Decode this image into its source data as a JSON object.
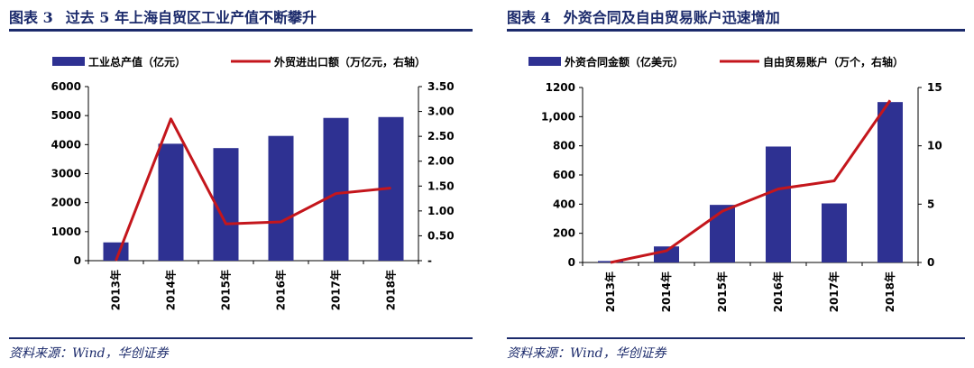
{
  "colors": {
    "bar": "#2e3192",
    "line": "#c4161c",
    "title": "#1b2a6b"
  },
  "charts": [
    {
      "figure_label": "图表 3",
      "title_text": "过去 5 年上海自贸区工业产值不断攀升",
      "source": "资料来源：Wind，华创证券",
      "legend_bar": "工业总产值（亿元）",
      "legend_line": "外贸进出口额（万亿元，右轴）",
      "left_ticks": [
        "6000",
        "5000",
        "4000",
        "3000",
        "2000",
        "1000",
        "0"
      ],
      "right_ticks": [
        "3.50",
        "3.00",
        "2.50",
        "2.00",
        "1.50",
        "1.00",
        "0.50",
        "-"
      ],
      "x_ticks": [
        "2013年",
        "2014年",
        "2015年",
        "2016年",
        "2017年",
        "2018年"
      ]
    },
    {
      "figure_label": "图表 4",
      "title_text": "外资合同及自由贸易账户迅速增加",
      "source": "资料来源：Wind，华创证券",
      "legend_bar": "外资合同金额（亿美元）",
      "legend_line": "自由贸易账户（万个，右轴）",
      "left_ticks": [
        "1200",
        "1,000",
        "800",
        "600",
        "400",
        "200",
        "0"
      ],
      "right_ticks": [
        "15",
        "10",
        "5",
        "0"
      ],
      "x_ticks": [
        "2013年",
        "2014年",
        "2015年",
        "2016年",
        "2017年",
        "2018年"
      ]
    }
  ],
  "chart_data": [
    {
      "type": "bar",
      "categories": [
        "2013年",
        "2014年",
        "2015年",
        "2016年",
        "2017年",
        "2018年"
      ],
      "series": [
        {
          "name": "工业总产值（亿元）",
          "type": "bar",
          "axis": "left",
          "values": [
            630,
            4030,
            3880,
            4300,
            4920,
            4950
          ]
        },
        {
          "name": "外贸进出口额（万亿元，右轴）",
          "type": "line",
          "axis": "right",
          "values": [
            0.0,
            2.85,
            0.74,
            0.78,
            1.35,
            1.46
          ]
        }
      ],
      "ylim_left": [
        0,
        6000
      ],
      "ylim_right": [
        0,
        3.5
      ],
      "legend": "top"
    },
    {
      "type": "bar",
      "categories": [
        "2013年",
        "2014年",
        "2015年",
        "2016年",
        "2017年",
        "2018年"
      ],
      "series": [
        {
          "name": "外资合同金额（亿美元）",
          "type": "bar",
          "axis": "left",
          "values": [
            10,
            110,
            395,
            795,
            405,
            1100
          ]
        },
        {
          "name": "自由贸易账户（万个，右轴）",
          "type": "line",
          "axis": "right",
          "values": [
            0.0,
            1.0,
            4.4,
            6.3,
            7.0,
            13.9
          ]
        }
      ],
      "ylim_left": [
        0,
        1200
      ],
      "ylim_right": [
        0,
        15
      ],
      "legend": "top"
    }
  ]
}
